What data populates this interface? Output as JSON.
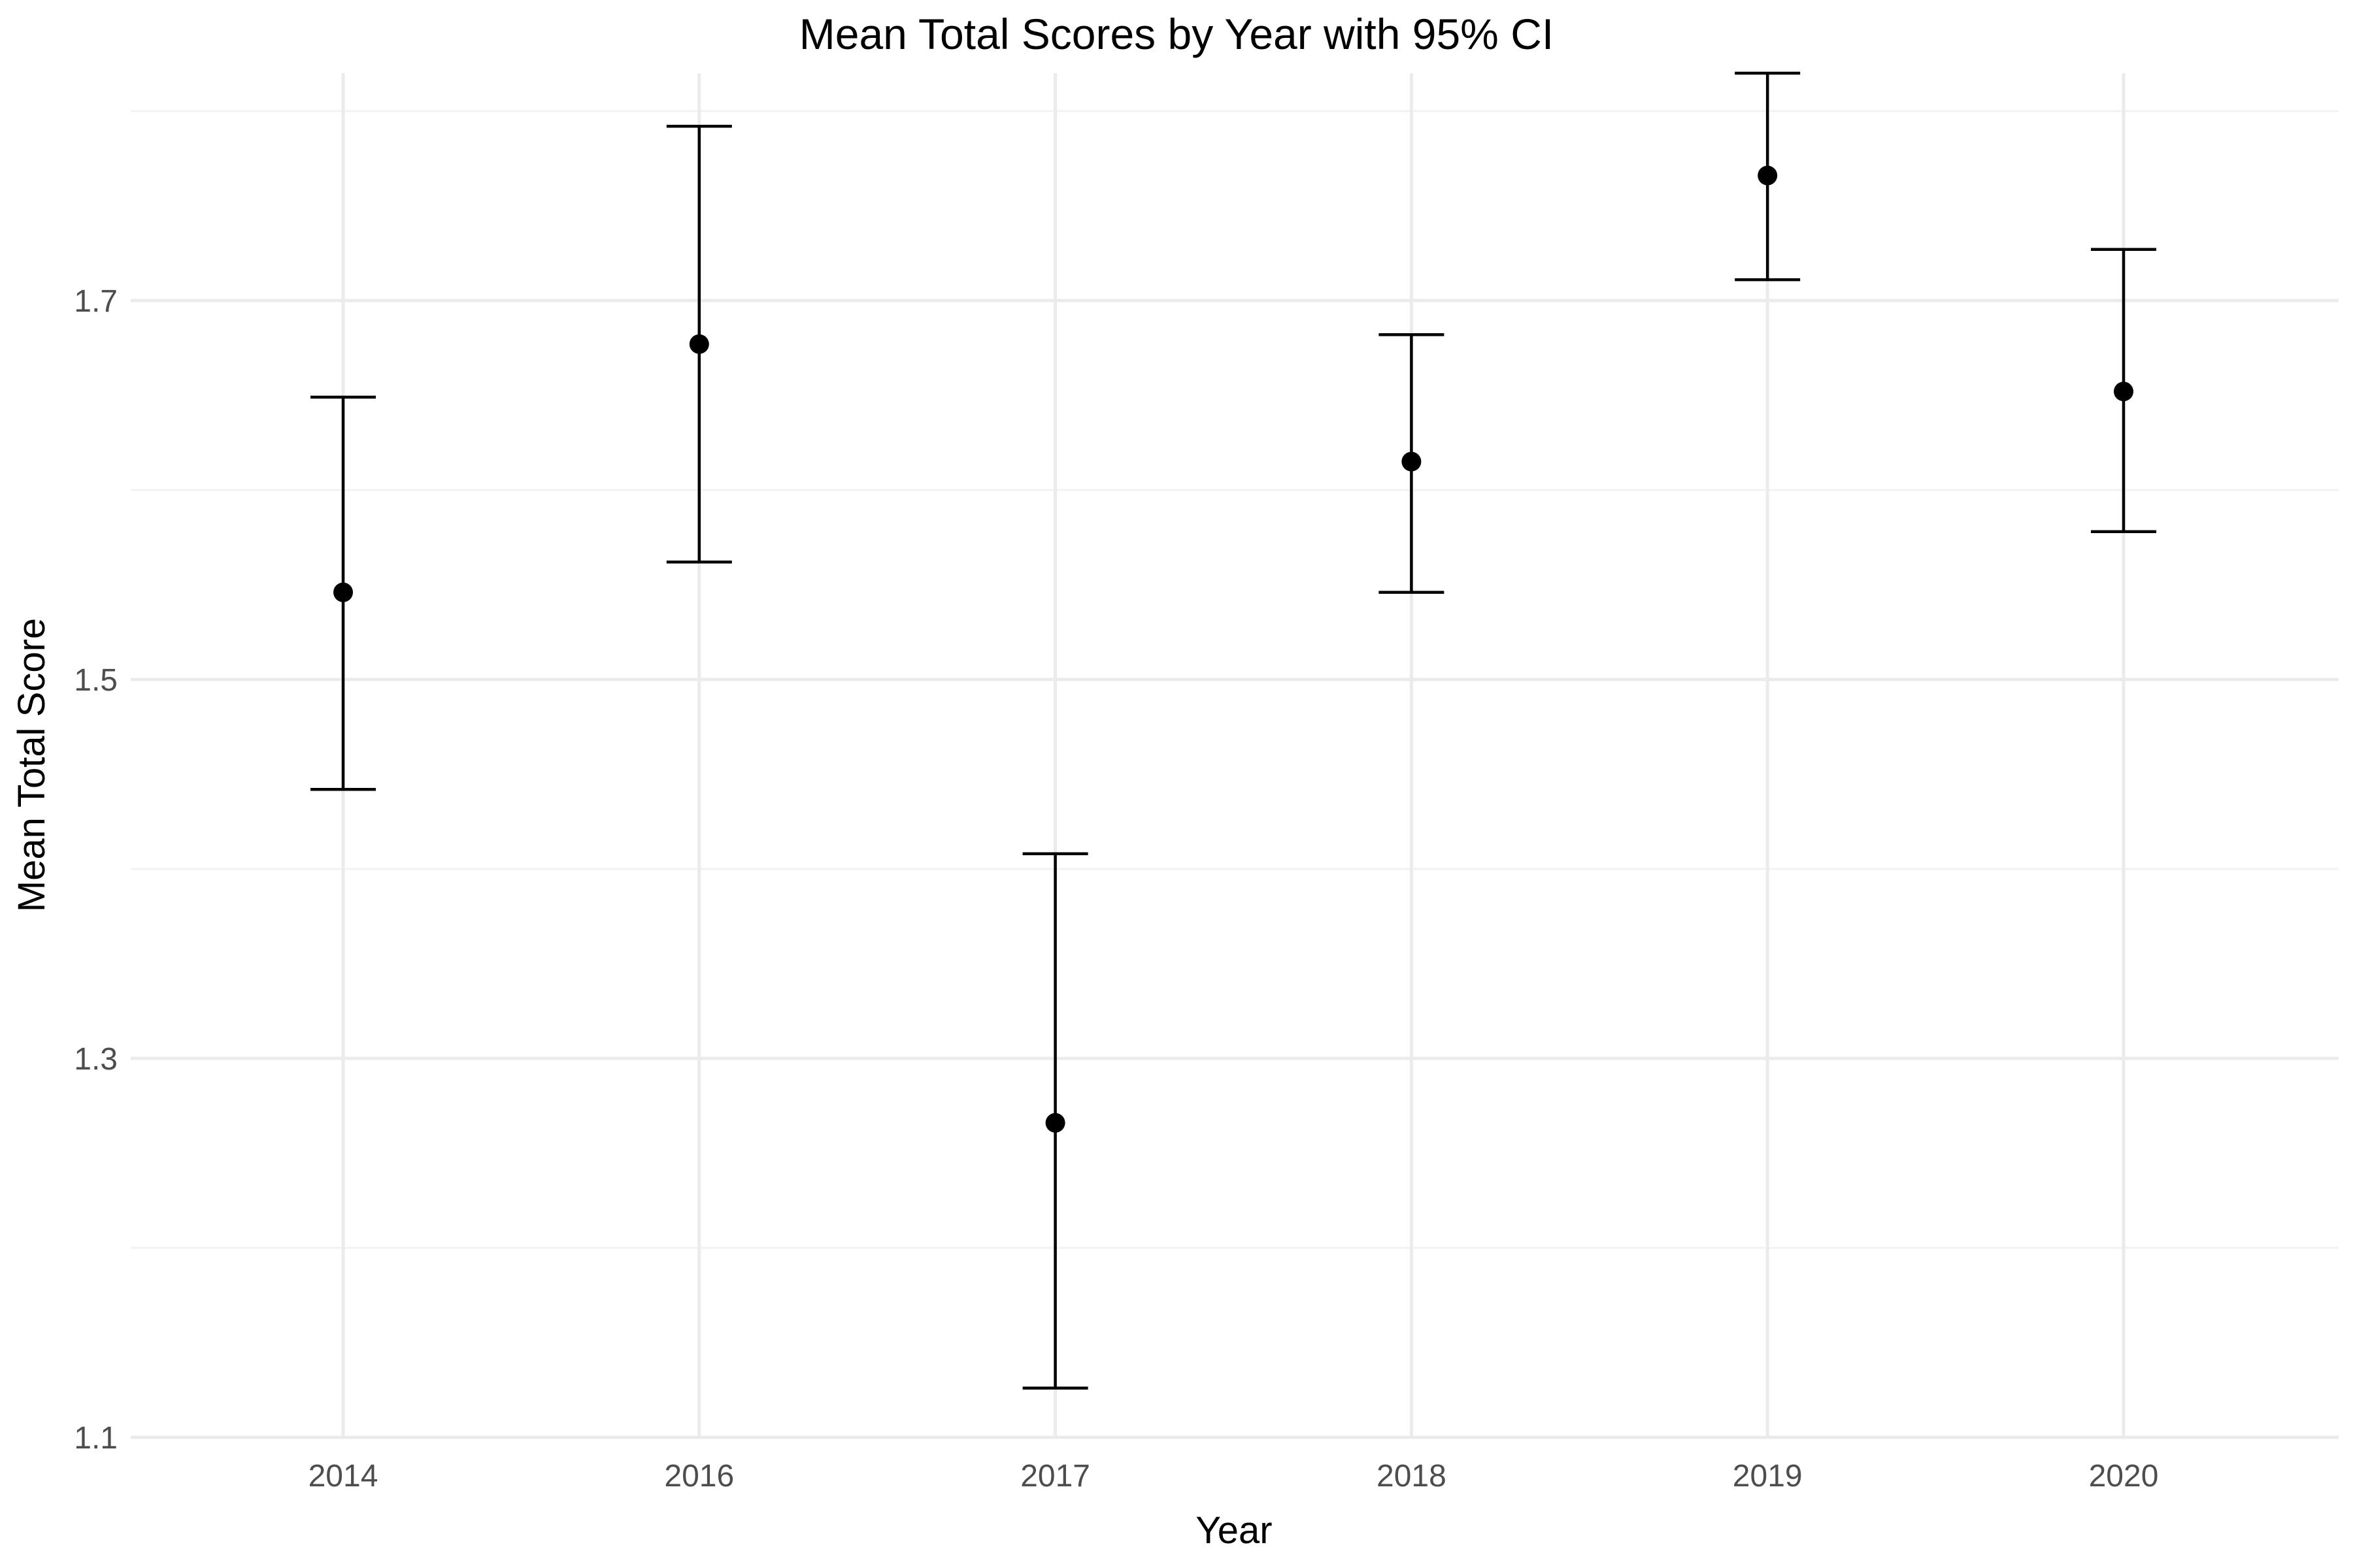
{
  "chart_data": {
    "type": "scatter",
    "title": "Mean Total Scores by Year with 95% CI",
    "xlabel": "Year",
    "ylabel": "Mean Total Score",
    "categories": [
      "2014",
      "2016",
      "2017",
      "2018",
      "2019",
      "2020"
    ],
    "series": [
      {
        "values": [
          1.546,
          1.677,
          1.266,
          1.615,
          1.766,
          1.652
        ],
        "ci_lower": [
          1.442,
          1.562,
          1.126,
          1.546,
          1.711,
          1.578
        ],
        "ci_upper": [
          1.649,
          1.792,
          1.408,
          1.682,
          1.82,
          1.727
        ]
      }
    ],
    "ylim": [
      1.1,
      1.82
    ],
    "yticks": [
      "1.1",
      "1.3",
      "1.5",
      "1.7"
    ],
    "grid": true,
    "legend": "none",
    "colors": {
      "point": "#000000",
      "errorbar": "#000000",
      "grid_major": "#ebebeb",
      "grid_minor": "#f2f2f2",
      "tick_text": "#4d4d4d"
    }
  }
}
